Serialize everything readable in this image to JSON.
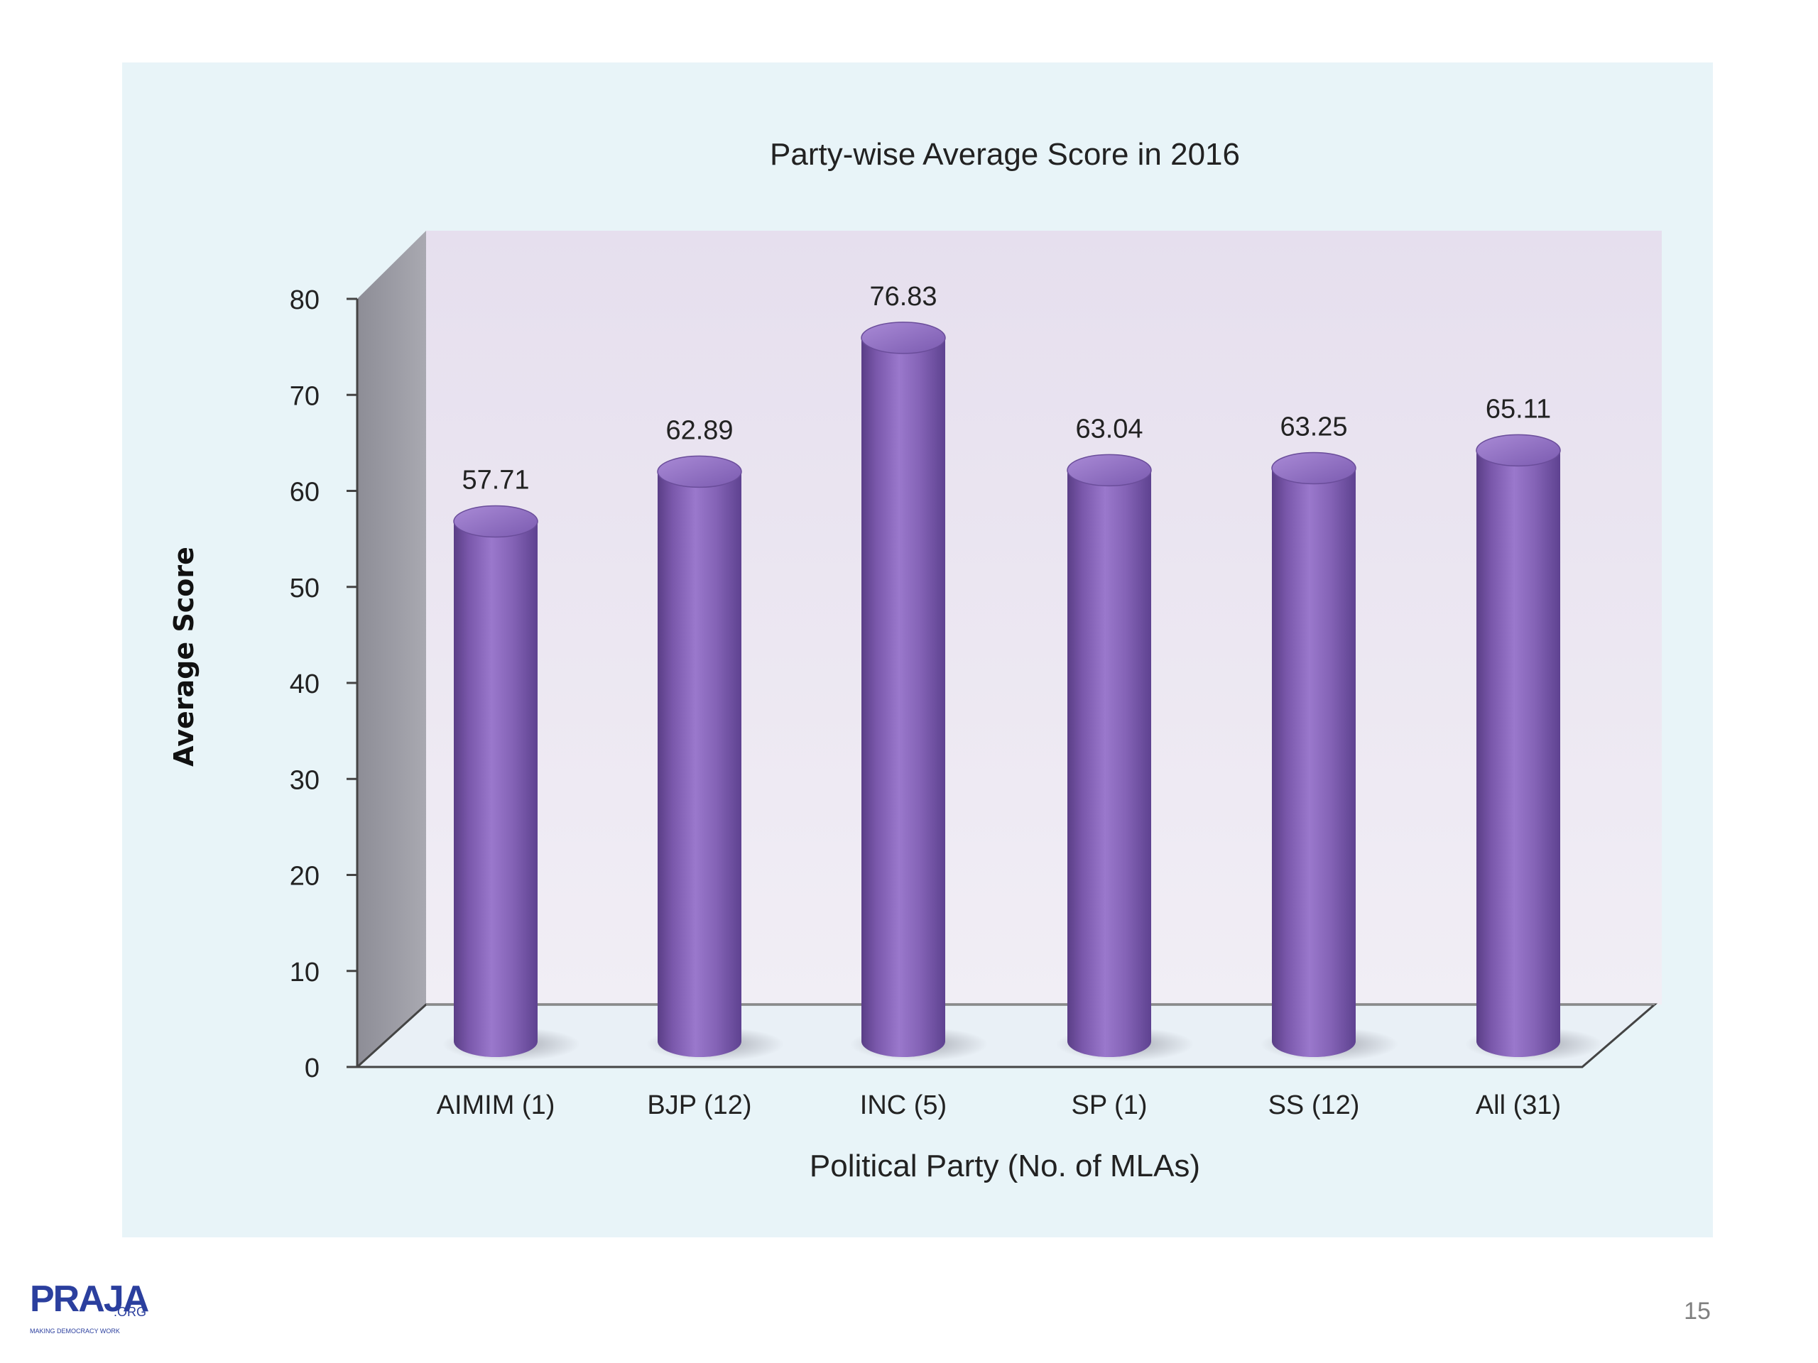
{
  "chart_data": {
    "type": "bar",
    "title": "Party-wise Average Score in 2016",
    "xlabel": "Political Party (No. of MLAs)",
    "ylabel": "Average Score",
    "categories": [
      "AIMIM (1)",
      "BJP (12)",
      "INC (5)",
      "SP (1)",
      "SS (12)",
      "All (31)"
    ],
    "values": [
      57.71,
      62.89,
      76.83,
      63.04,
      63.25,
      65.11
    ],
    "data_labels": [
      "57.71",
      "62.89",
      "76.83",
      "63.04",
      "63.25",
      "65.11"
    ],
    "yticks": [
      "0",
      "10",
      "20",
      "30",
      "40",
      "50",
      "60",
      "70",
      "80"
    ],
    "ylim": [
      0,
      80
    ],
    "grid": false,
    "legend": "none",
    "style": "3d-cylinder",
    "bar_color": "#8a68b8",
    "back_wall_color": "#ece6f0",
    "side_wall_color": "#9a9aa2"
  },
  "footer": {
    "logo_text": "PRAJA",
    "logo_suffix": ".ORG",
    "logo_tagline": "MAKING DEMOCRACY WORK",
    "page_number": "15"
  }
}
